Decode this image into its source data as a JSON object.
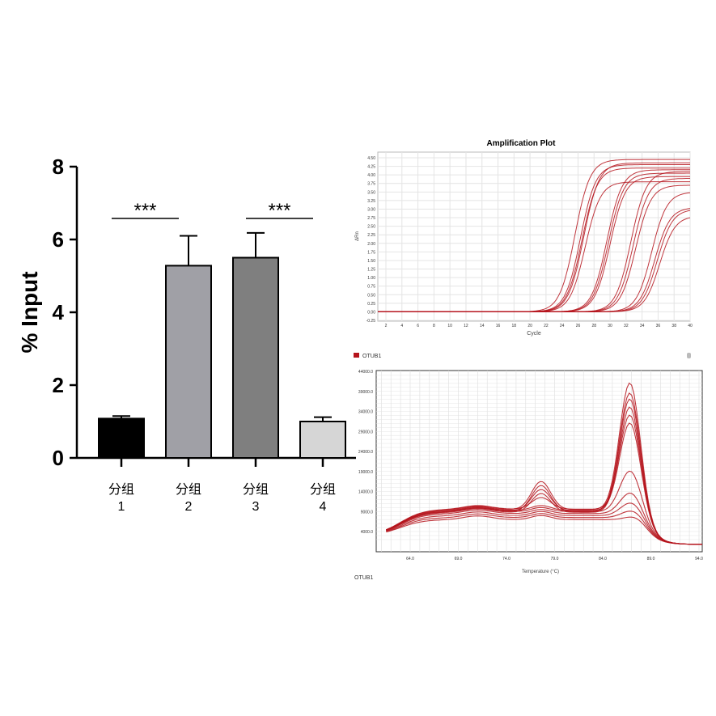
{
  "chart_data": [
    {
      "type": "bar",
      "ylabel": "% Input",
      "ylim": [
        0,
        8
      ],
      "yticks": [
        "0",
        "2",
        "4",
        "6",
        "8"
      ],
      "categories": [
        [
          "分组",
          "1"
        ],
        [
          "分组",
          "2"
        ],
        [
          "分组",
          "3"
        ],
        [
          "分组",
          "4"
        ]
      ],
      "values": [
        1.08,
        5.28,
        5.5,
        1.0
      ],
      "errors": [
        0.07,
        0.82,
        0.68,
        0.12
      ],
      "colors": [
        "#000000",
        "#a0a0a6",
        "#7f7f7f",
        "#d6d6d6"
      ],
      "annotations": [
        {
          "from": 0,
          "to": 1,
          "text": "***"
        },
        {
          "from": 2,
          "to": 3,
          "text": "***"
        }
      ]
    },
    {
      "type": "line",
      "title": "Amplification Plot",
      "xlabel": "Cycle",
      "ylabel": "ΔRn",
      "xlim": [
        1,
        40
      ],
      "ylim": [
        -0.25,
        4.5
      ],
      "xticks": [
        "2",
        "4",
        "6",
        "8",
        "10",
        "12",
        "14",
        "16",
        "18",
        "20",
        "22",
        "24",
        "26",
        "28",
        "30",
        "32",
        "34",
        "36",
        "38",
        "40"
      ],
      "yticks": [
        "-0.25",
        "0.00",
        "0.25",
        "0.50",
        "0.75",
        "1.00",
        "1.25",
        "1.50",
        "1.75",
        "2.00",
        "2.25",
        "2.50",
        "2.75",
        "3.00",
        "3.25",
        "3.50",
        "3.75",
        "4.00",
        "4.25",
        "4.50"
      ],
      "grid": true,
      "color": "#b5141c",
      "series": [
        {
          "midpoint_cycle": 25.6,
          "plateau": 4.45
        },
        {
          "midpoint_cycle": 26.3,
          "plateau": 4.3
        },
        {
          "midpoint_cycle": 26.5,
          "plateau": 4.2
        },
        {
          "midpoint_cycle": 26.7,
          "plateau": 4.35
        },
        {
          "midpoint_cycle": 26.9,
          "plateau": 3.8
        },
        {
          "midpoint_cycle": 29.6,
          "plateau": 4.15
        },
        {
          "midpoint_cycle": 29.8,
          "plateau": 4.05
        },
        {
          "midpoint_cycle": 30.0,
          "plateau": 3.95
        },
        {
          "midpoint_cycle": 32.6,
          "plateau": 4.1
        },
        {
          "midpoint_cycle": 32.9,
          "plateau": 3.9
        },
        {
          "midpoint_cycle": 33.2,
          "plateau": 3.7
        },
        {
          "midpoint_cycle": 35.2,
          "plateau": 3.5
        },
        {
          "midpoint_cycle": 35.6,
          "plateau": 3.05
        },
        {
          "midpoint_cycle": 35.9,
          "plateau": 3.0
        },
        {
          "midpoint_cycle": 36.2,
          "plateau": 2.8
        }
      ]
    },
    {
      "type": "line",
      "legend": "OTUB1",
      "xlabel": "Temperature (°C)",
      "xlim": [
        60,
        95
      ],
      "ylim": [
        0,
        44000
      ],
      "xticks": [
        "64.0",
        "69.0",
        "74.0",
        "79.0",
        "84.0",
        "89.0",
        "94.0"
      ],
      "yticks": [
        "4000.0",
        "9000.0",
        "14000.0",
        "19000.0",
        "24000.0",
        "29000.0",
        "34000.0",
        "39000.0",
        "44000.0"
      ],
      "grid": true,
      "color": "#b5141c",
      "footer": "OTUB1",
      "series": [
        {
          "baseline": 9500,
          "peak_78": 16500,
          "peak_87": 41000
        },
        {
          "baseline": 9000,
          "peak_78": 15500,
          "peak_87": 38500
        },
        {
          "baseline": 9200,
          "peak_78": 14500,
          "peak_87": 37000
        },
        {
          "baseline": 8800,
          "peak_78": 13500,
          "peak_87": 35000
        },
        {
          "baseline": 9600,
          "peak_78": 12500,
          "peak_87": 33000
        },
        {
          "baseline": 9300,
          "peak_78": 10500,
          "peak_87": 31000
        },
        {
          "baseline": 9000,
          "peak_78": 10000,
          "peak_87": 19000
        },
        {
          "baseline": 8500,
          "peak_78": 9500,
          "peak_87": 13500
        },
        {
          "baseline": 8000,
          "peak_78": 9000,
          "peak_87": 11000
        },
        {
          "baseline": 7500,
          "peak_78": 8500,
          "peak_87": 9000
        },
        {
          "baseline": 7000,
          "peak_78": 8000,
          "peak_87": 7500
        }
      ]
    }
  ]
}
